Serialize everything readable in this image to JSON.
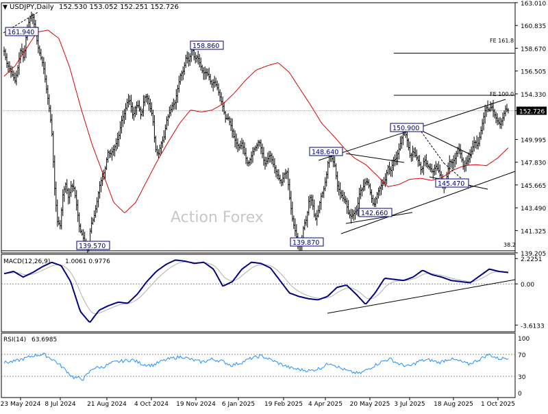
{
  "header": {
    "symbol": "USDJPY,Daily",
    "ohlc": "152.530 153.052 152.251 152.726"
  },
  "watermark": "Action Forex",
  "colors": {
    "background": "#ffffff",
    "bars": "#000000",
    "ma": "#e00000",
    "macd": "#000080",
    "signal": "#b0b0b0",
    "rsi": "#1e90ff",
    "levels": "#000000"
  },
  "chart_data": [
    {
      "type": "ohlc",
      "title": "USDJPY,Daily",
      "ylim": [
        139.2,
        163.0
      ],
      "y_ticks": [
        "163.010",
        "160.835",
        "158.670",
        "156.505",
        "154.330",
        "152.726",
        "149.995",
        "147.830",
        "145.665",
        "143.490",
        "141.325",
        "139.205"
      ],
      "current_price": "152.726",
      "x_tick_labels": [
        "23 May 2024",
        "8 Jul 2024",
        "21 Aug 2024",
        "4 Oct 2024",
        "19 Nov 2024",
        "6 Jan 2025",
        "19 Feb 2025",
        "4 Apr 2025",
        "20 May 2025",
        "3 Jul 2025",
        "18 Aug 2025",
        "1 Oct 2025"
      ],
      "series_anchor_prices": [
        158.4,
        157.2,
        156.7,
        156.1,
        155.5,
        157.0,
        158.7,
        157.6,
        160.2,
        161.4,
        161.94,
        160.6,
        158.9,
        157.9,
        157.0,
        155.0,
        153.2,
        150.9,
        145.5,
        142.2,
        141.8,
        144.8,
        145.8,
        144.4,
        145.7,
        145.3,
        143.5,
        141.4,
        140.9,
        139.9,
        139.57,
        141.9,
        142.5,
        143.8,
        145.5,
        146.4,
        147.1,
        148.8,
        148.6,
        149.0,
        149.6,
        150.4,
        151.9,
        152.5,
        153.6,
        153.7,
        152.1,
        153.2,
        153.2,
        152.1,
        154.0,
        154.1,
        153.1,
        152.2,
        149.1,
        148.5,
        149.6,
        150.1,
        151.8,
        152.5,
        153.2,
        153.5,
        154.9,
        156.2,
        156.5,
        157.9,
        157.4,
        158.86,
        157.6,
        157.9,
        157.1,
        156.3,
        156.4,
        156.1,
        155.2,
        155.5,
        155.0,
        154.1,
        153.2,
        152.0,
        152.0,
        151.3,
        150.2,
        149.6,
        149.2,
        149.7,
        148.5,
        147.6,
        148.2,
        149.0,
        149.3,
        149.9,
        148.9,
        147.6,
        148.1,
        148.6,
        147.7,
        147.0,
        146.3,
        145.9,
        146.7,
        146.9,
        144.3,
        142.3,
        141.2,
        140.0,
        139.87,
        141.9,
        142.4,
        144.6,
        144.1,
        142.3,
        142.9,
        144.5,
        145.1,
        146.4,
        148.64,
        148.2,
        147.6,
        145.6,
        144.9,
        144.4,
        144.1,
        142.9,
        142.66,
        143.0,
        143.3,
        145.1,
        145.3,
        146.0,
        145.9,
        144.6,
        143.6,
        144.7,
        145.3,
        145.8,
        146.0,
        147.4,
        147.0,
        148.0,
        148.2,
        149.1,
        150.2,
        150.9,
        149.8,
        148.3,
        148.9,
        148.4,
        147.9,
        146.9,
        148.2,
        147.5,
        147.3,
        146.8,
        147.5,
        147.1,
        146.3,
        145.47,
        146.4,
        147.9,
        147.8,
        148.2,
        149.2,
        148.6,
        147.3,
        147.8,
        148.2,
        149.0,
        149.9,
        149.3,
        150.5,
        151.9,
        153.1,
        152.7,
        153.2,
        152.4,
        151.8,
        151.4,
        152.0,
        152.9,
        152.726
      ],
      "moving_average_anchor_prices": [
        156.0,
        157.0,
        158.6,
        160.2,
        160.4,
        159.6,
        156.8,
        153.0,
        149.6,
        146.8,
        144.0,
        143.0,
        144.0,
        146.0,
        148.0,
        149.8,
        151.5,
        152.8,
        152.6,
        152.8,
        153.4,
        154.4,
        155.6,
        156.6,
        157.0,
        157.3,
        156.4,
        154.8,
        153.2,
        151.5,
        150.4,
        149.2,
        148.2,
        147.6,
        146.6,
        145.5,
        145.7,
        146.2,
        146.3,
        146.1,
        146.4,
        147.1,
        147.5,
        147.6,
        147.5,
        148.2,
        149.2
      ],
      "series": [
        {
          "name": "MACD(12,26,9)",
          "readout": "1.0061 0.9776"
        },
        {
          "name": "RSI(14)",
          "readout": "63.6985"
        }
      ],
      "annotations": [
        {
          "text": "161.940",
          "price": 161.94
        },
        {
          "text": "158.860",
          "price": 158.86
        },
        {
          "text": "139.570",
          "price": 139.57
        },
        {
          "text": "139.870",
          "price": 139.87
        },
        {
          "text": "148.640",
          "price": 148.64
        },
        {
          "text": "142.660",
          "price": 142.66
        },
        {
          "text": "150.900",
          "price": 150.9
        },
        {
          "text": "145.470",
          "price": 145.47
        },
        {
          "text": "FE 161.8",
          "price": 158.2
        },
        {
          "text": "FE 100.0",
          "price": 154.2
        },
        {
          "text": "38.2",
          "price": 139.4
        }
      ],
      "macd": {
        "y_ticks": [
          "2.2251",
          "0.00",
          "-3.6133"
        ],
        "line_anchor_values": [
          0.9,
          1.1,
          0.6,
          1.0,
          1.5,
          1.9,
          1.6,
          0.2,
          -2.4,
          -3.4,
          -2.3,
          -1.9,
          -1.6,
          -1.7,
          -0.9,
          0.2,
          1.1,
          1.7,
          2.1,
          2.0,
          1.8,
          1.9,
          1.3,
          -0.2,
          0.2,
          1.3,
          1.9,
          1.8,
          1.4,
          0.3,
          -0.8,
          -1.1,
          -1.3,
          -1.4,
          -1.1,
          -0.3,
          -0.1,
          -0.9,
          -1.8,
          -0.8,
          0.5,
          0.4,
          0.3,
          0.6,
          1.2,
          0.8,
          0.6,
          0.3,
          0.2,
          0.1,
          0.7,
          1.3,
          1.1,
          1.0
        ]
      },
      "rsi": {
        "y_ticks": [
          "100",
          "70",
          "30",
          "0"
        ],
        "line_anchor_values": [
          55,
          57,
          62,
          68,
          70,
          60,
          45,
          28,
          25,
          45,
          47,
          55,
          58,
          60,
          52,
          50,
          58,
          63,
          66,
          60,
          56,
          61,
          58,
          50,
          55,
          63,
          67,
          60,
          52,
          45,
          42,
          40,
          45,
          55,
          45,
          38,
          35,
          45,
          55,
          62,
          52,
          48,
          58,
          60,
          55,
          62,
          58,
          52,
          60,
          70,
          62,
          64
        ]
      }
    }
  ]
}
